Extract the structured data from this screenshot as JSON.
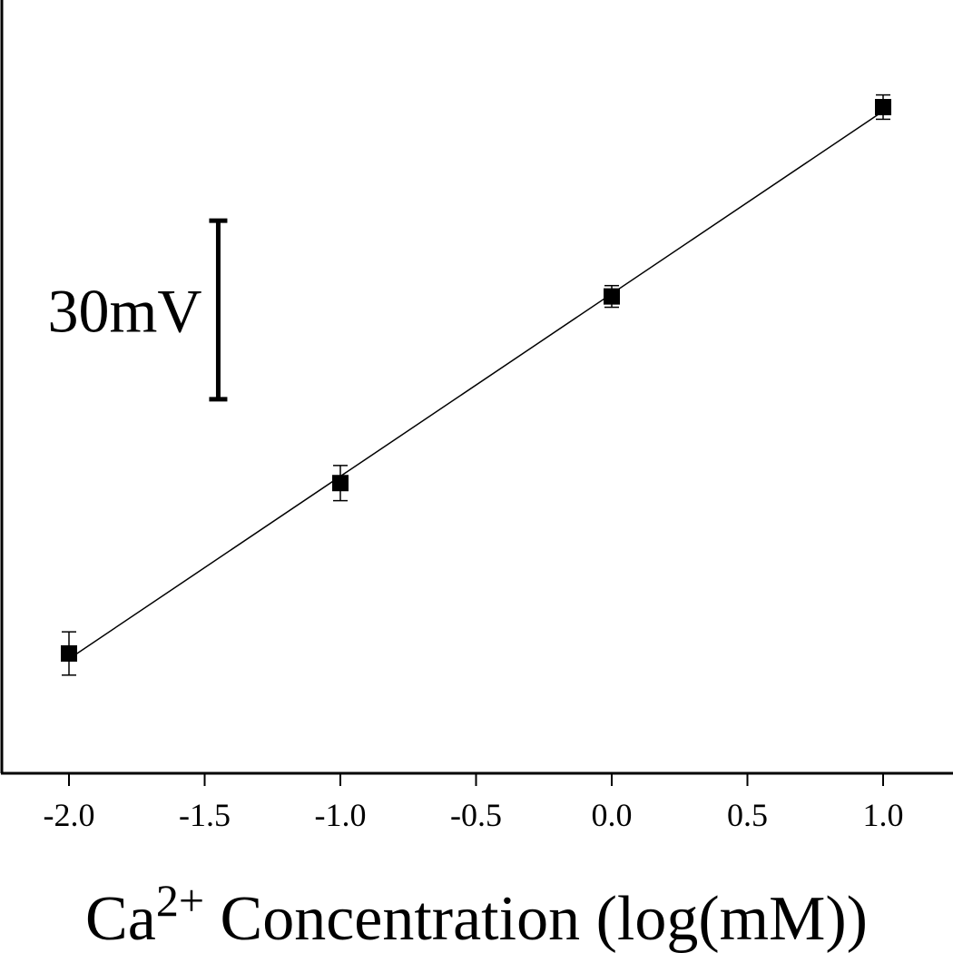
{
  "chart_data": {
    "type": "scatter",
    "x": [
      -2.0,
      -1.0,
      0.0,
      1.0
    ],
    "y": [
      0,
      63,
      132,
      202
    ],
    "yerr": [
      8,
      6.5,
      4,
      4.5
    ],
    "fit_line": true,
    "xlim": [
      -2.25,
      1.25
    ],
    "ylim": [
      -44,
      242
    ],
    "x_ticks": [
      -2.0,
      -1.5,
      -1.0,
      -0.5,
      0.0,
      0.5,
      1.0
    ],
    "x_tick_labels": [
      "-2.0",
      "-1.5",
      "-1.0",
      "-0.5",
      "0.0",
      "0.5",
      "1.0"
    ],
    "xlabel_main": "Ca",
    "xlabel_sup": "2+",
    "xlabel_rest": " Concentration (log(mM))",
    "ylabel": "",
    "title": "",
    "scale_bar": {
      "label": "30mV",
      "value": 30,
      "x_position": -1.45,
      "y_top": 160
    },
    "grid": false,
    "marker_color": "#000000",
    "line_color": "#000000"
  }
}
